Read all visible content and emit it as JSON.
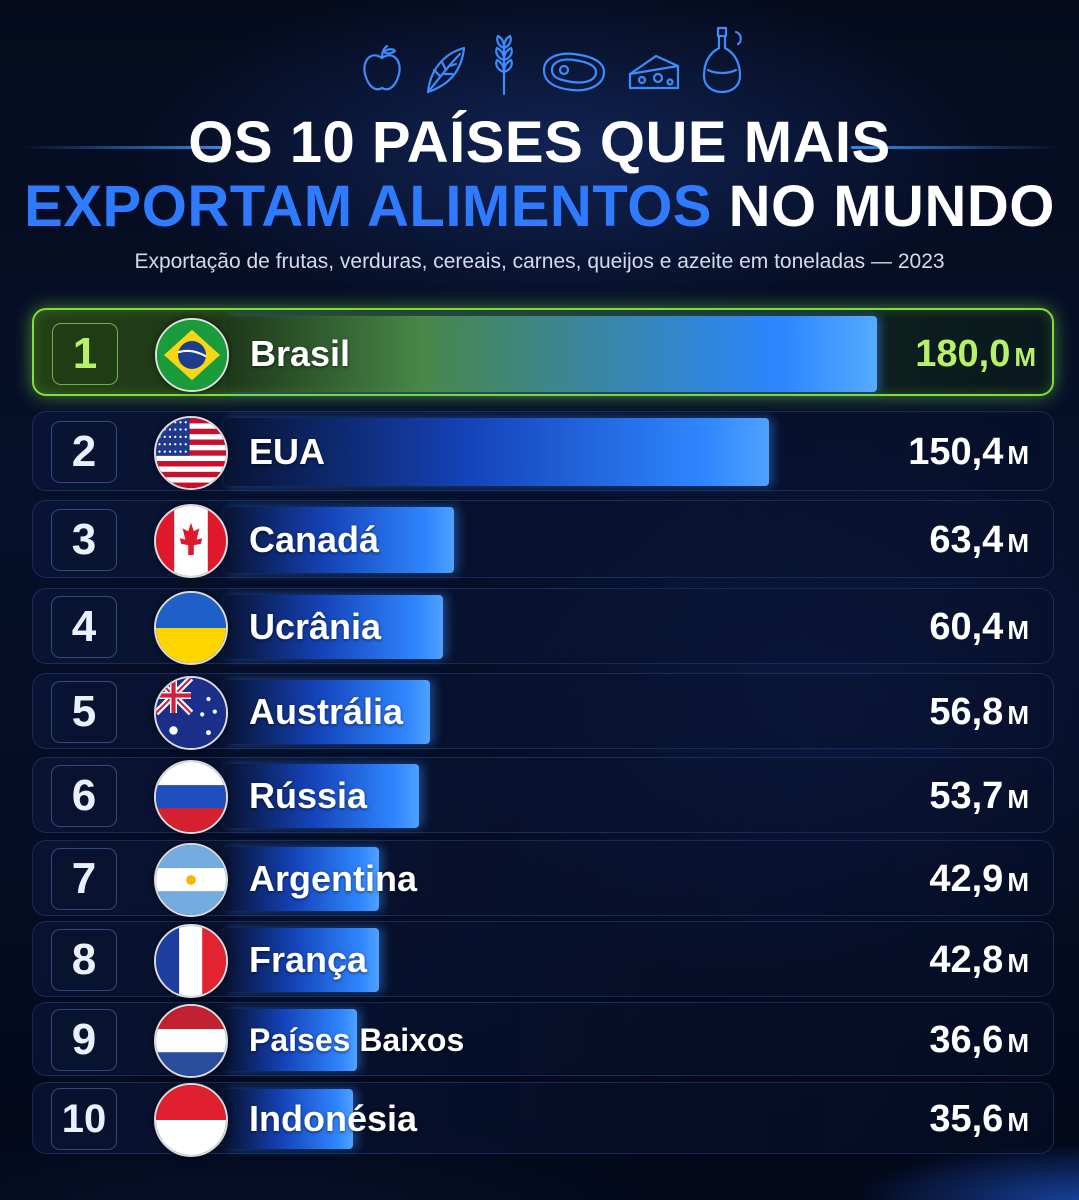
{
  "header": {
    "icons": [
      "apple-icon",
      "leafy-greens-icon",
      "wheat-icon",
      "steak-icon",
      "cheese-icon",
      "olive-oil-bottle-icon"
    ],
    "title_line1": "OS 10 PAÍSES QUE MAIS",
    "title_line2_accent": "EXPORTAM ALIMENTOS",
    "title_line2_rest": "NO MUNDO",
    "subtitle": "Exportação de frutas, verduras, cereais, carnes, queijos e azeite em toneladas — 2023"
  },
  "colors": {
    "background": "#050b1c",
    "accent_blue": "#2f7bff",
    "highlight_green": "#7fe03a",
    "value_green": "#b8f06a"
  },
  "chart_data": {
    "type": "bar",
    "orientation": "horizontal",
    "unit": "M",
    "xlim": [
      0,
      180
    ],
    "grid": false,
    "legend": "none",
    "rows": [
      {
        "rank": "1",
        "country": "Brasil",
        "value": 180.0,
        "value_label": "180,0",
        "flag": "brazil"
      },
      {
        "rank": "2",
        "country": "EUA",
        "value": 150.4,
        "value_label": "150,4",
        "flag": "usa"
      },
      {
        "rank": "3",
        "country": "Canadá",
        "value": 63.4,
        "value_label": "63,4",
        "flag": "canada"
      },
      {
        "rank": "4",
        "country": "Ucrânia",
        "value": 60.4,
        "value_label": "60,4",
        "flag": "ukraine"
      },
      {
        "rank": "5",
        "country": "Austrália",
        "value": 56.8,
        "value_label": "56,8",
        "flag": "australia"
      },
      {
        "rank": "6",
        "country": "Rússia",
        "value": 53.7,
        "value_label": "53,7",
        "flag": "russia"
      },
      {
        "rank": "7",
        "country": "Argentina",
        "value": 42.9,
        "value_label": "42,9",
        "flag": "argentina"
      },
      {
        "rank": "8",
        "country": "França",
        "value": 42.8,
        "value_label": "42,8",
        "flag": "france"
      },
      {
        "rank": "9",
        "country": "Países Baixos",
        "value": 36.6,
        "value_label": "36,6",
        "flag": "netherlands"
      },
      {
        "rank": "10",
        "country": "Indonésia",
        "value": 35.6,
        "value_label": "35,6",
        "flag": "indonesia"
      }
    ]
  }
}
